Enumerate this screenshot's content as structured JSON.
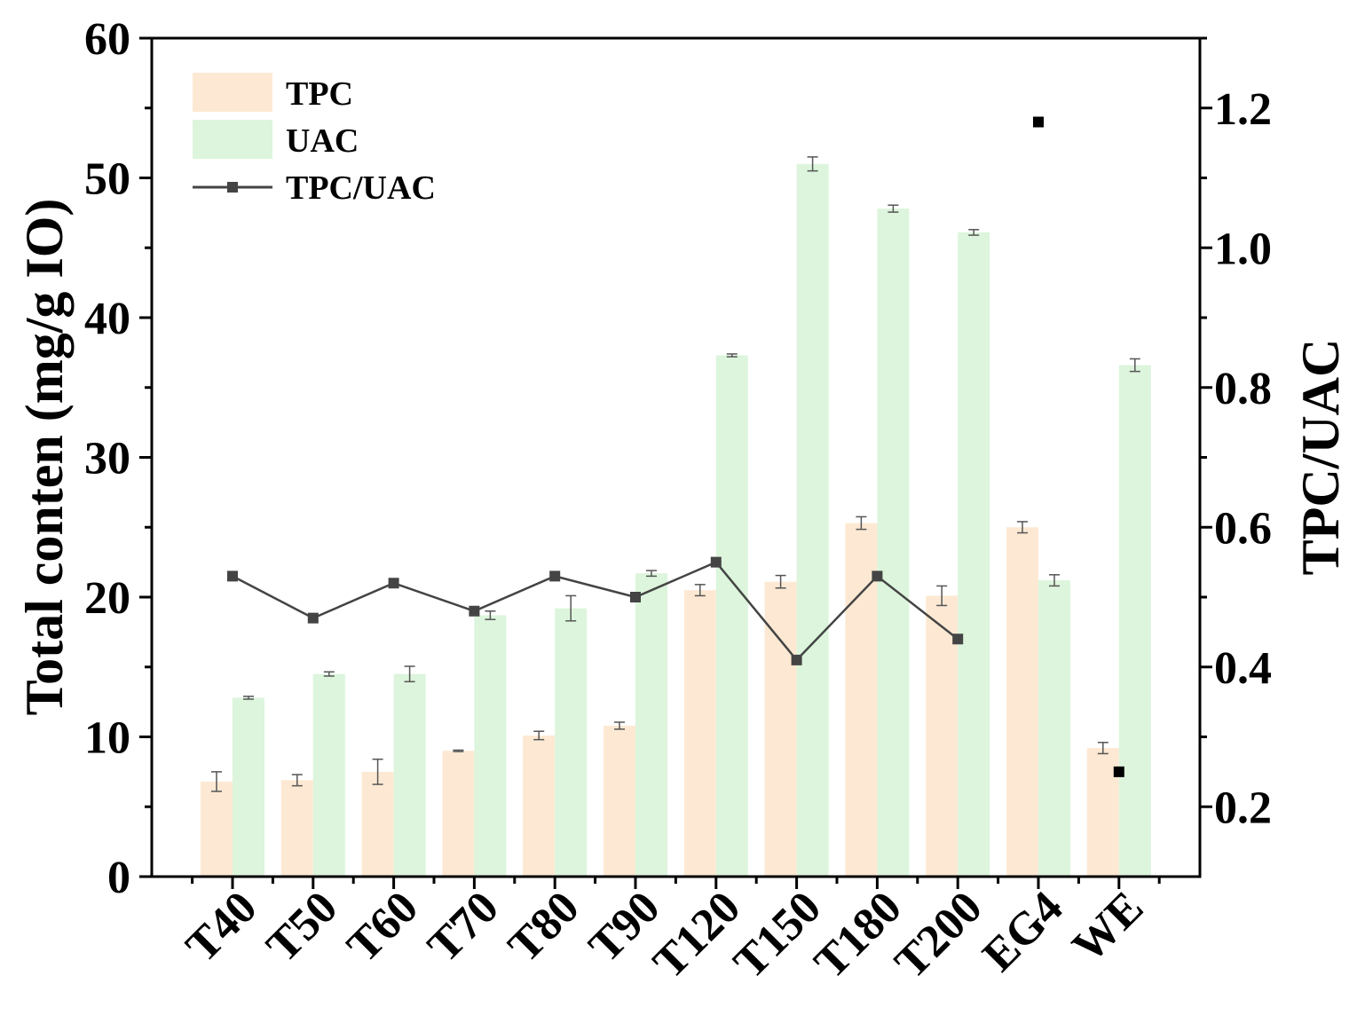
{
  "chart_data": {
    "type": "bar",
    "categories": [
      "T40",
      "T50",
      "T60",
      "T70",
      "T80",
      "T90",
      "T120",
      "T150",
      "T180",
      "T200",
      "EG4",
      "WE"
    ],
    "series": [
      {
        "name": "TPC",
        "color": "#fde9d3",
        "values": [
          6.8,
          6.9,
          7.5,
          9.0,
          10.1,
          10.8,
          20.5,
          21.1,
          25.3,
          20.1,
          25.0,
          9.2
        ],
        "errors": [
          0.7,
          0.4,
          0.9,
          0.05,
          0.3,
          0.25,
          0.4,
          0.45,
          0.45,
          0.7,
          0.4,
          0.4
        ]
      },
      {
        "name": "UAC",
        "color": "#dcf5dc",
        "values": [
          12.8,
          14.5,
          14.5,
          18.7,
          19.2,
          21.7,
          37.3,
          51.0,
          47.8,
          46.1,
          21.2,
          36.6
        ],
        "errors": [
          0.1,
          0.15,
          0.55,
          0.3,
          0.9,
          0.2,
          0.1,
          0.5,
          0.25,
          0.2,
          0.4,
          0.45
        ]
      },
      {
        "name": "TPC/UAC",
        "type": "line",
        "axis": "right",
        "color": "#444444",
        "values": [
          0.53,
          0.47,
          0.52,
          0.48,
          0.53,
          0.5,
          0.55,
          0.41,
          0.53,
          0.44,
          1.18,
          0.25
        ],
        "line_break_before": "EG4"
      }
    ],
    "left_axis": {
      "label": "Total conten (mg/g IO)",
      "ylim": [
        0,
        60
      ],
      "ticks": [
        0,
        10,
        20,
        30,
        40,
        50,
        60
      ]
    },
    "right_axis": {
      "label": "TPC/UAC",
      "ylim": [
        0.1,
        1.3
      ],
      "ticks": [
        "0.2",
        "0.4",
        "0.6",
        "0.8",
        "1.0",
        "1.2"
      ]
    },
    "legend": {
      "position": "top-left",
      "entries": [
        "TPC",
        "UAC",
        "TPC/UAC"
      ]
    }
  }
}
